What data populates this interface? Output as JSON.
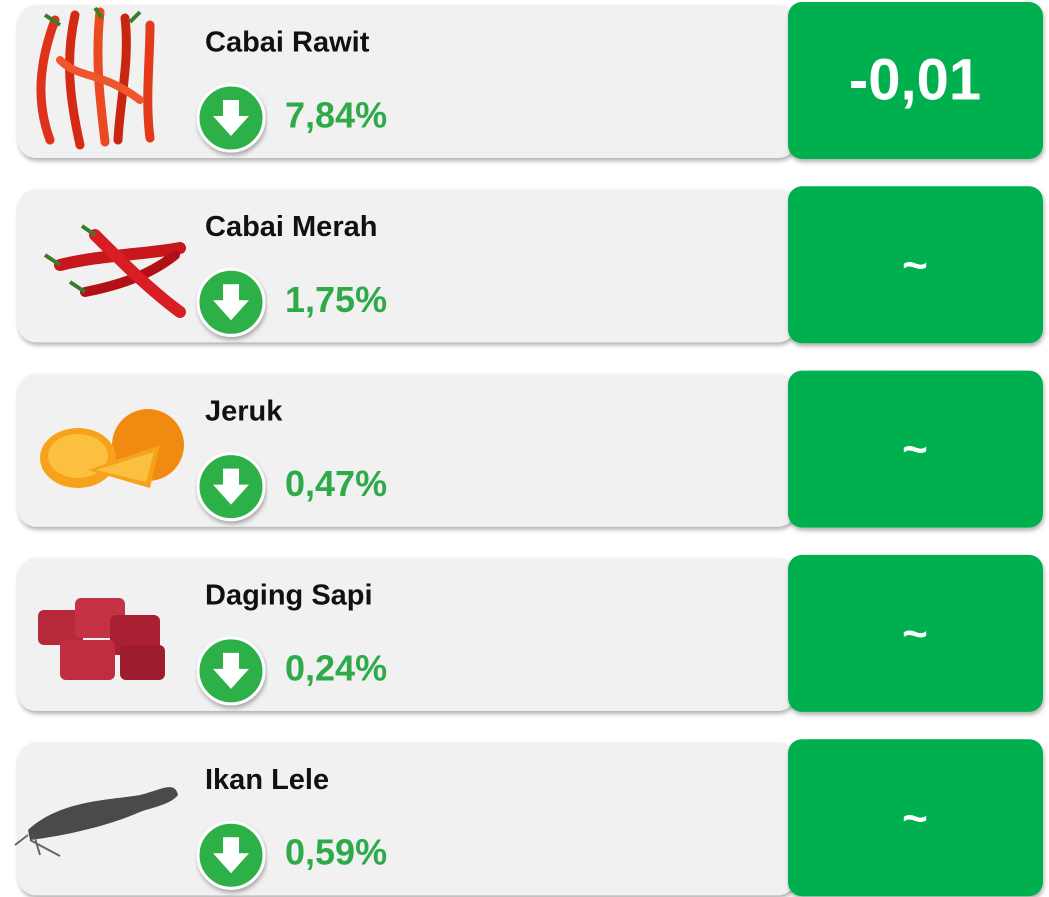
{
  "items": [
    {
      "name": "Cabai Rawit",
      "change": "7,84%",
      "value": "-0,01"
    },
    {
      "name": "Cabai Merah",
      "change": "1,75%",
      "value": "~"
    },
    {
      "name": "Jeruk",
      "change": "0,47%",
      "value": "~"
    },
    {
      "name": "Daging Sapi",
      "change": "0,24%",
      "value": "~"
    },
    {
      "name": "Ikan Lele",
      "change": "0,59%",
      "value": "~"
    }
  ]
}
